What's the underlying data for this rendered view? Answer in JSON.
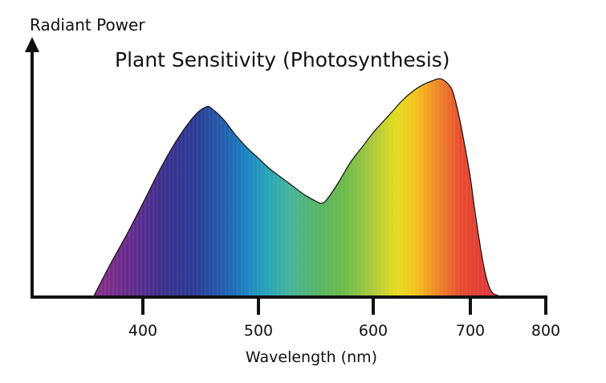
{
  "chart_data": {
    "type": "area",
    "title": "Plant Sensitivity (Photosynthesis)",
    "ylabel": "Radiant Power",
    "xlabel": "Wavelength (nm)",
    "xticks": [
      "400",
      "500",
      "600",
      "700",
      "800"
    ],
    "xlim": [
      300,
      800
    ],
    "ylim": [
      0,
      1
    ],
    "grid": false,
    "legend": "none",
    "fill": "visible spectrum gradient (violet to red)",
    "series": [
      {
        "x": [
          356,
          370,
          385,
          400,
          415,
          430,
          445,
          455,
          460,
          470,
          480,
          490,
          500,
          510,
          520,
          530,
          540,
          550,
          555,
          560,
          570,
          580,
          590,
          600,
          610,
          620,
          630,
          640,
          650,
          660,
          670,
          680,
          685,
          690,
          695,
          700,
          705,
          710,
          715,
          720,
          725,
          730,
          737
        ],
        "y": [
          0.0,
          0.14,
          0.28,
          0.43,
          0.59,
          0.73,
          0.84,
          0.88,
          0.87,
          0.82,
          0.75,
          0.69,
          0.64,
          0.59,
          0.55,
          0.51,
          0.47,
          0.44,
          0.43,
          0.45,
          0.53,
          0.62,
          0.69,
          0.76,
          0.81,
          0.86,
          0.91,
          0.95,
          0.98,
          1.0,
          1.01,
          0.97,
          0.9,
          0.8,
          0.68,
          0.55,
          0.42,
          0.3,
          0.19,
          0.1,
          0.04,
          0.01,
          0.0
        ]
      }
    ]
  }
}
